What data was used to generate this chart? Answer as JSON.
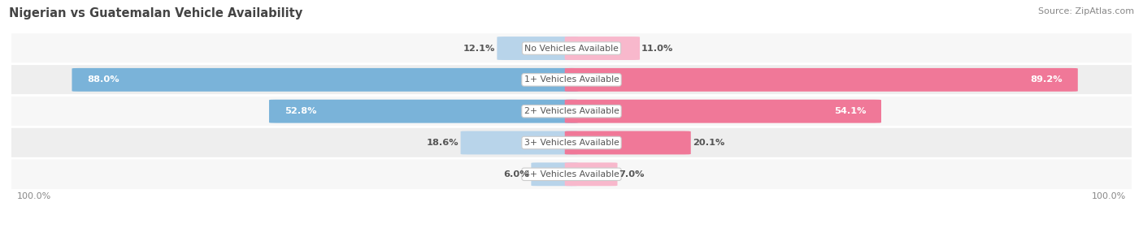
{
  "title": "Nigerian vs Guatemalan Vehicle Availability",
  "source": "Source: ZipAtlas.com",
  "categories": [
    "No Vehicles Available",
    "1+ Vehicles Available",
    "2+ Vehicles Available",
    "3+ Vehicles Available",
    "4+ Vehicles Available"
  ],
  "nigerian_values": [
    12.1,
    88.0,
    52.8,
    18.6,
    6.0
  ],
  "guatemalan_values": [
    11.0,
    89.2,
    54.1,
    20.1,
    7.0
  ],
  "nigerian_color": "#7ab3d9",
  "guatemalan_color": "#f07898",
  "nigerian_color_light": "#b8d4ea",
  "guatemalan_color_light": "#f8b8cc",
  "row_bg_odd": "#f7f7f7",
  "row_bg_even": "#eeeeee",
  "max_value": 100.0,
  "title_color": "#444444",
  "source_color": "#888888",
  "label_dark": "#555555",
  "label_white": "#ffffff"
}
